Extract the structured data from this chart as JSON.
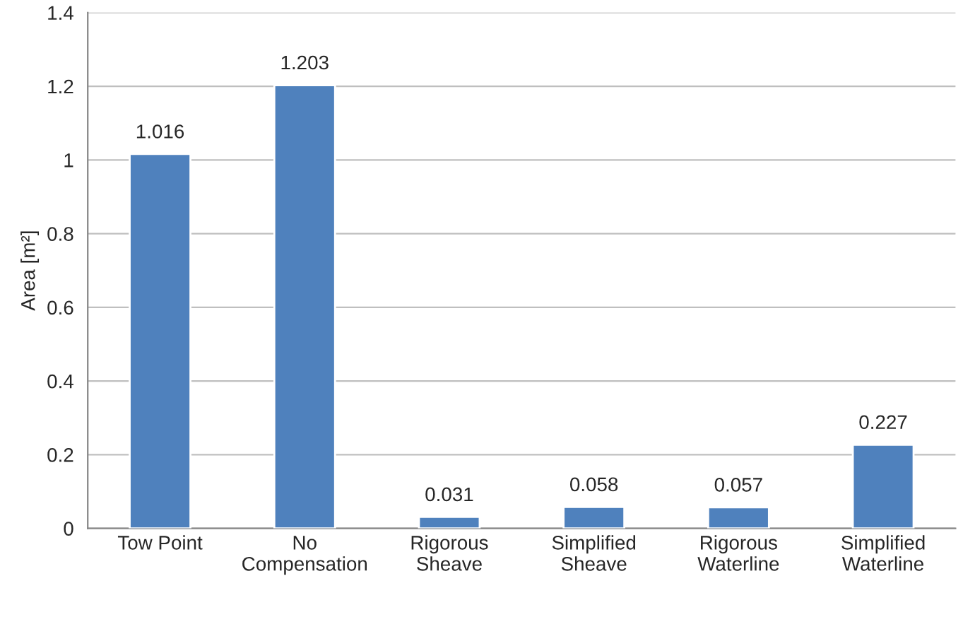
{
  "chart_data": {
    "type": "bar",
    "ylabel": "Area [m²]",
    "categories": [
      "Tow Point",
      "No\nCompensation",
      "Rigorous\nSheave",
      "Simplified\nSheave",
      "Rigorous\nWaterline",
      "Simplified\nWaterline"
    ],
    "values": [
      1.016,
      1.203,
      0.031,
      0.058,
      0.057,
      0.227
    ],
    "color": "#4f81bd",
    "data_labels": true,
    "ylim": [
      0,
      1.4
    ],
    "yticks": [
      0,
      0.2,
      0.4,
      0.6,
      0.8,
      1,
      1.2,
      1.4
    ],
    "grid": "y"
  }
}
